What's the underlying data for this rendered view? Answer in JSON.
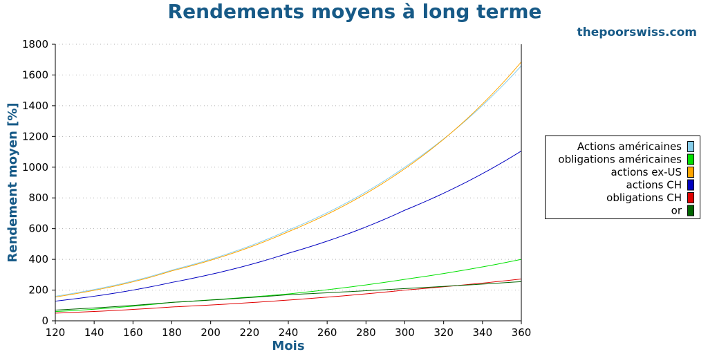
{
  "header": {
    "title": "Rendements moyens à long terme",
    "site": "thepoorswiss.com"
  },
  "colors": {
    "title": "#175a87",
    "grid": "#b0b0b0"
  },
  "chart_data": {
    "type": "line",
    "title": "Rendements moyens à long terme",
    "xlabel": "Mois",
    "ylabel": "Rendement moyen [%]",
    "xlim": [
      120,
      360
    ],
    "ylim": [
      0,
      1800
    ],
    "xticks": [
      120,
      140,
      160,
      180,
      200,
      220,
      240,
      260,
      280,
      300,
      320,
      340,
      360
    ],
    "yticks": [
      0,
      200,
      400,
      600,
      800,
      1000,
      1200,
      1400,
      1600,
      1800
    ],
    "grid": "horizontal dotted",
    "legend_position": "right",
    "x": [
      120,
      180,
      240,
      300,
      360
    ],
    "series": [
      {
        "name": "Actions américaines",
        "color": "#87ceeb",
        "values": [
          160,
          330,
          590,
          1000,
          1660
        ]
      },
      {
        "name": "obligations américaines",
        "color": "#00e000",
        "values": [
          60,
          120,
          175,
          270,
          400
        ]
      },
      {
        "name": "actions ex-US",
        "color": "#ffa500",
        "values": [
          155,
          325,
          580,
          990,
          1685
        ]
      },
      {
        "name": "actions CH",
        "color": "#0000c0",
        "values": [
          128,
          250,
          440,
          720,
          1105
        ]
      },
      {
        "name": "obligations CH",
        "color": "#e00000",
        "values": [
          50,
          90,
          135,
          200,
          272
        ]
      },
      {
        "name": "or",
        "color": "#006400",
        "values": [
          70,
          120,
          170,
          210,
          255
        ]
      }
    ]
  }
}
